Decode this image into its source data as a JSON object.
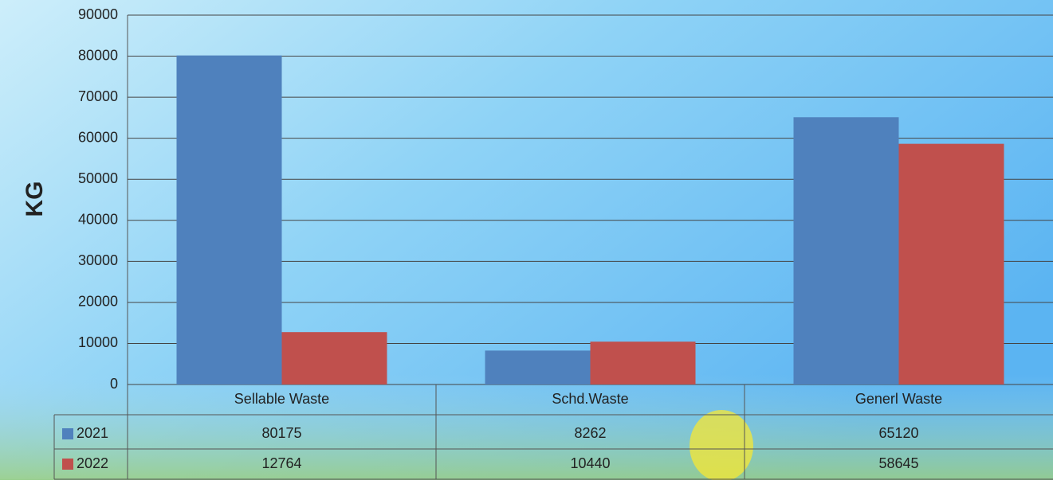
{
  "chart_data": {
    "type": "bar",
    "y_label": "KG",
    "categories": [
      "Sellable Waste",
      "Schd.Waste",
      "Generl Waste"
    ],
    "series": [
      {
        "name": "2021",
        "color": "#4f81bd",
        "values": [
          80175,
          8262,
          65120
        ]
      },
      {
        "name": "2022",
        "color": "#c0504d",
        "values": [
          12764,
          10440,
          58645
        ]
      }
    ],
    "ylim": [
      0,
      90000
    ],
    "yticks": [
      0,
      10000,
      20000,
      30000,
      40000,
      50000,
      60000,
      70000,
      80000,
      90000
    ],
    "grid": true
  }
}
